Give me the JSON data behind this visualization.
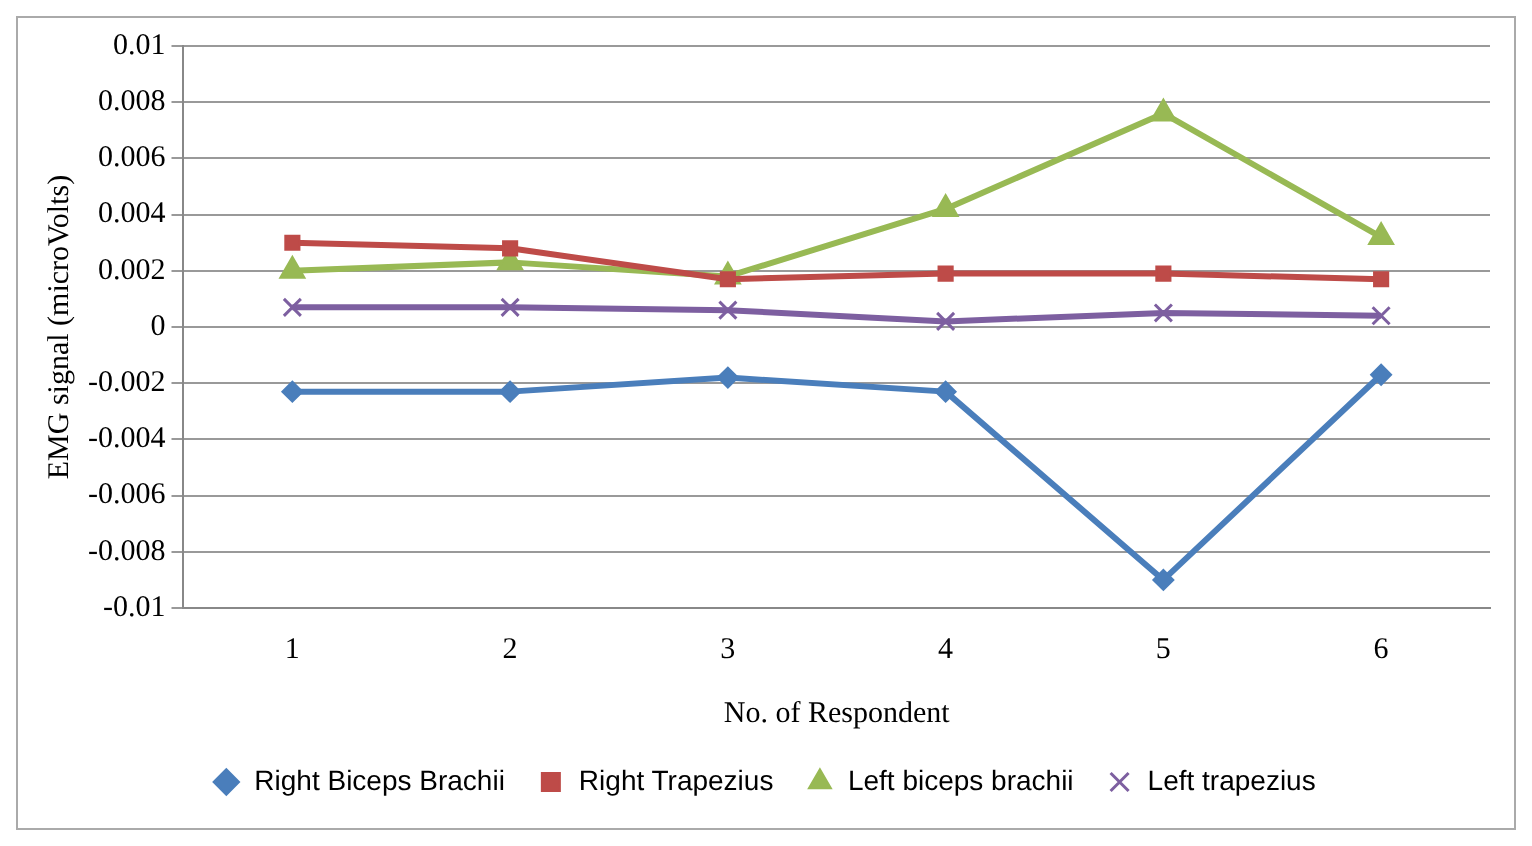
{
  "chart_data": {
    "type": "line",
    "xlabel": "No. of Respondent",
    "ylabel": "EMG signal (microVolts)",
    "categories": [
      "1",
      "2",
      "3",
      "4",
      "5",
      "6"
    ],
    "series": [
      {
        "name": "Right Biceps Brachii",
        "color": "#4a7ebb",
        "marker": "diamond",
        "values": [
          -0.0023,
          -0.0023,
          -0.0018,
          -0.0023,
          -0.009,
          -0.0017
        ]
      },
      {
        "name": "Right Trapezius",
        "color": "#be4b48",
        "marker": "square",
        "values": [
          0.003,
          0.0028,
          0.0017,
          0.0019,
          0.0019,
          0.0017
        ]
      },
      {
        "name": "Left biceps brachii",
        "color": "#98b954",
        "marker": "triangle",
        "values": [
          0.002,
          0.0023,
          0.0018,
          0.0042,
          0.0076,
          0.0032
        ]
      },
      {
        "name": "Left trapezius",
        "color": "#7d5fa0",
        "marker": "cross",
        "values": [
          0.0007,
          0.0007,
          0.0006,
          0.0002,
          0.0005,
          0.0004
        ]
      }
    ],
    "ylim": [
      -0.01,
      0.01
    ],
    "yticks": [
      -0.01,
      -0.008,
      -0.006,
      -0.004,
      -0.002,
      0,
      0.002,
      0.004,
      0.006,
      0.008,
      0.01
    ],
    "grid": "y",
    "legend": "bottom"
  }
}
